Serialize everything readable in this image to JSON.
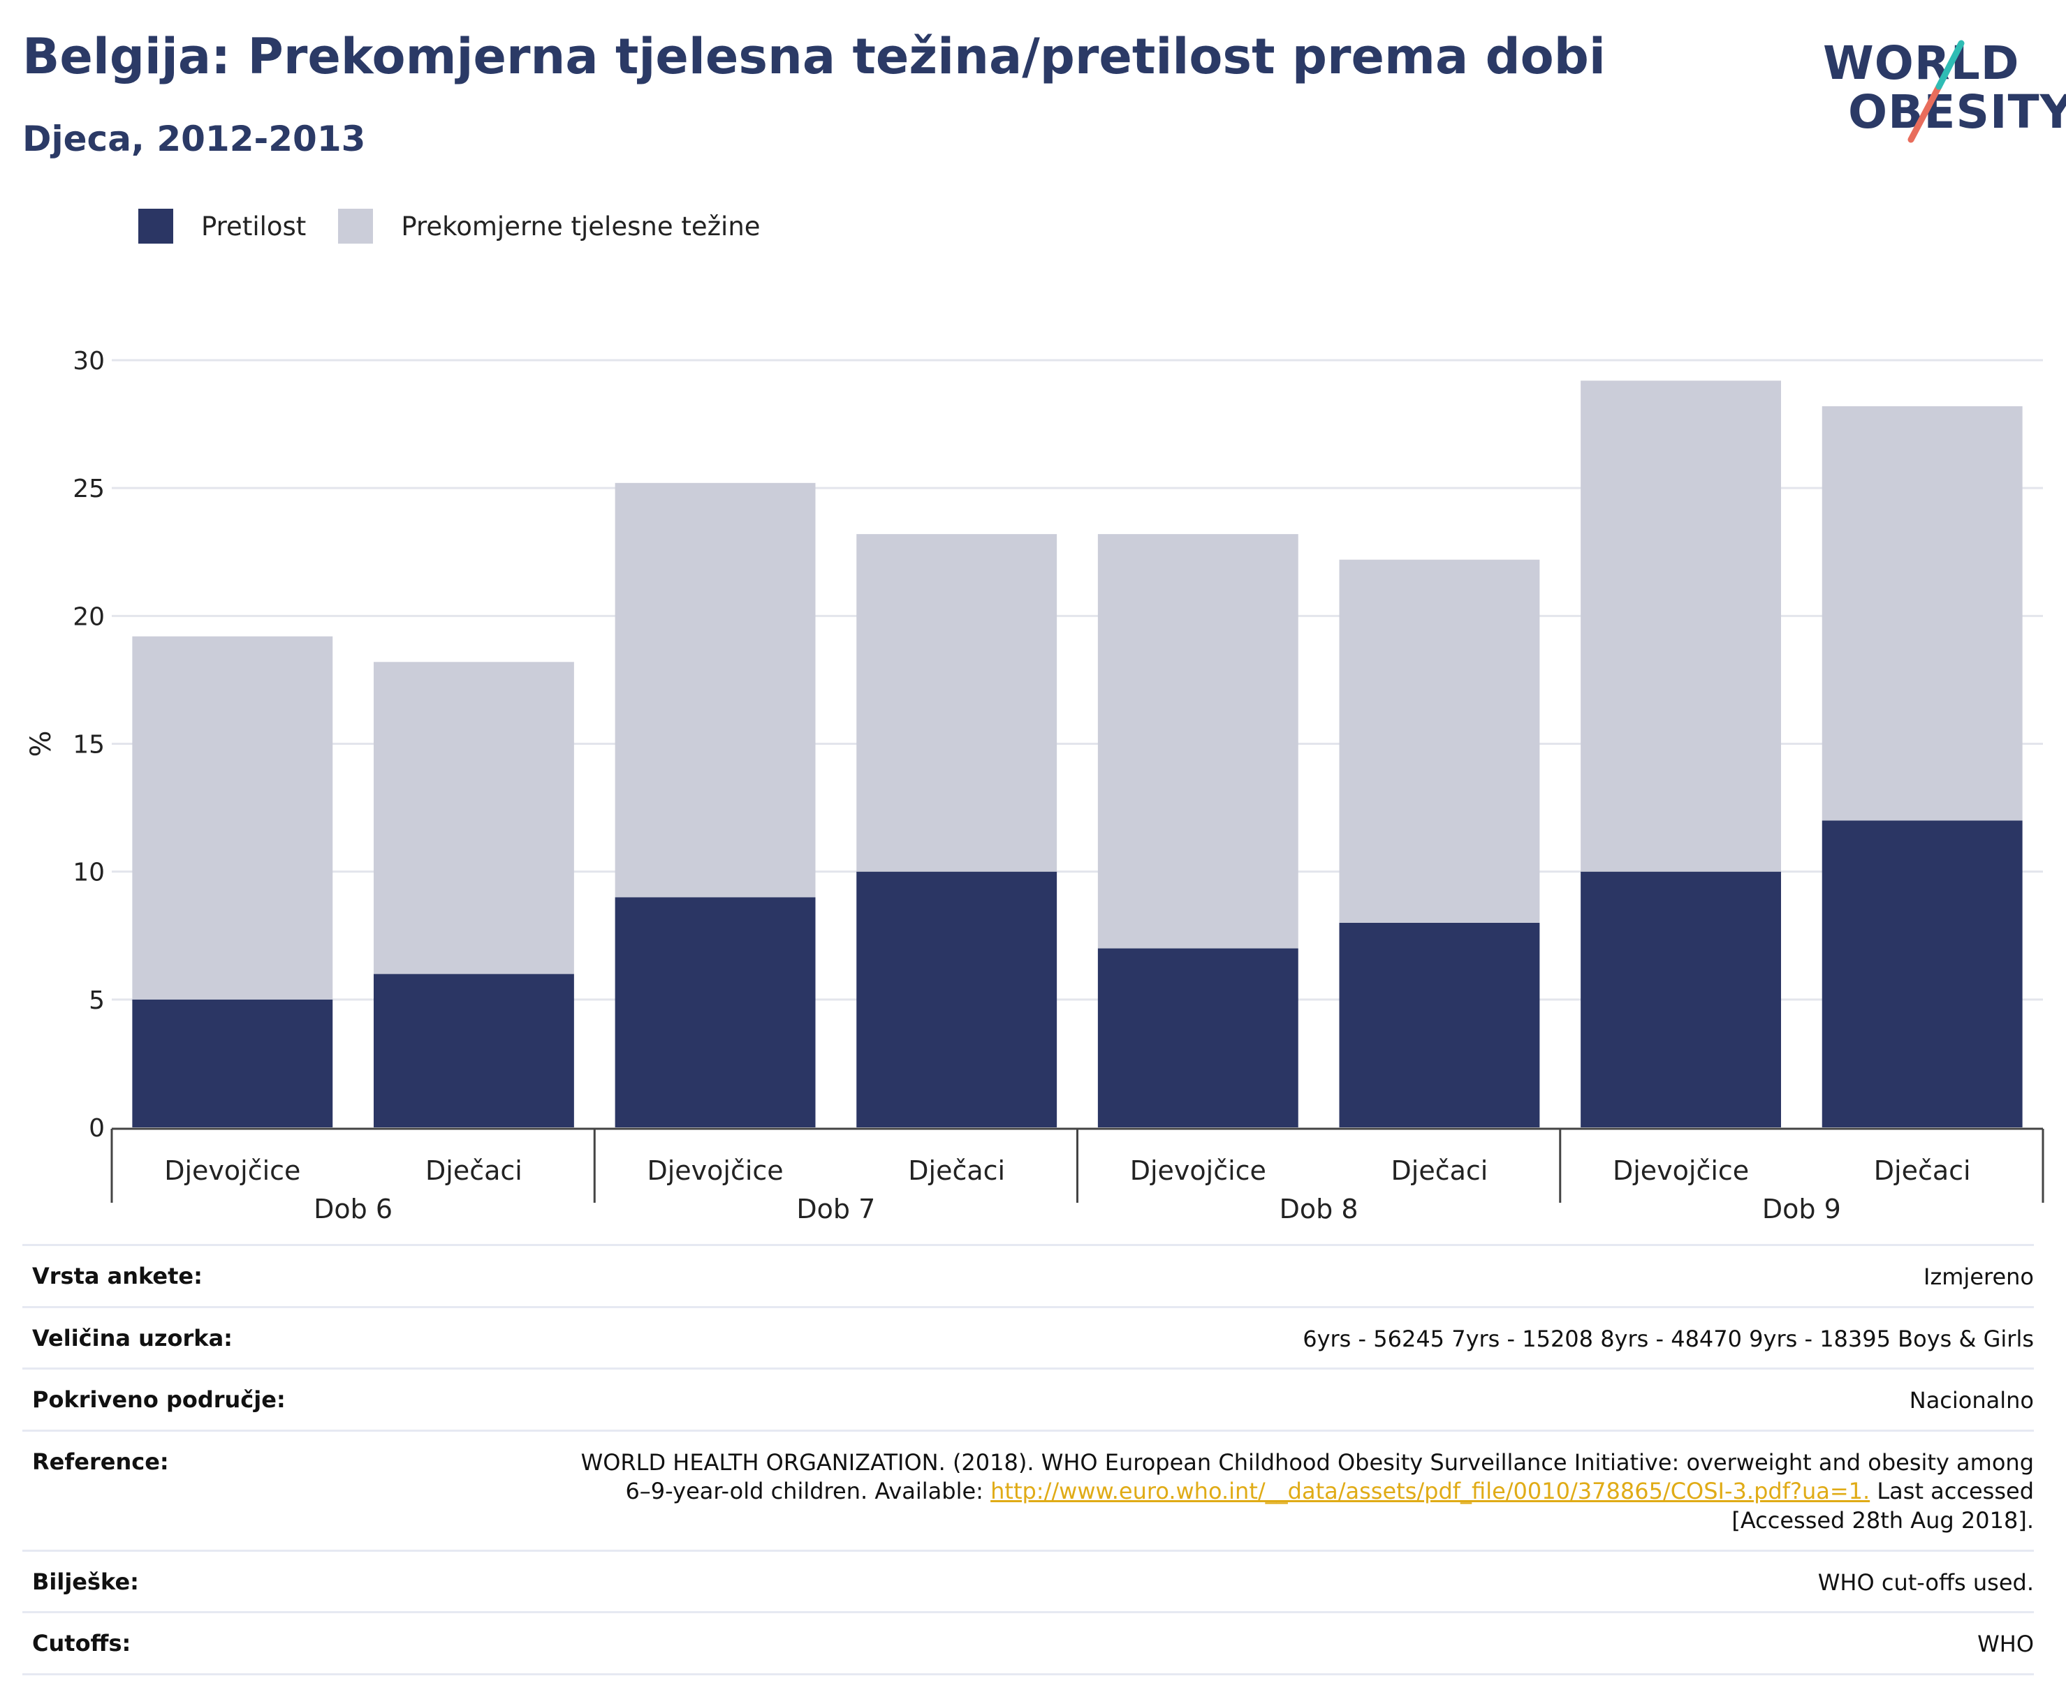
{
  "header": {
    "title": "Belgija: Prekomjerna tjelesna težina/pretilost prema dobi",
    "subtitle": "Djeca, 2012-2013"
  },
  "logo": {
    "line1": "WORLD",
    "line2": "OBESITY"
  },
  "legend": [
    {
      "label": "Pretilost",
      "color": "#2b3664"
    },
    {
      "label": "Prekomjerne tjelesne težine",
      "color": "#cbcdd9"
    }
  ],
  "chart_data": {
    "type": "bar",
    "stacked": true,
    "ylabel": "%",
    "ylim": [
      0,
      30
    ],
    "yticks": [
      0,
      5,
      10,
      15,
      20,
      25,
      30
    ],
    "grid": true,
    "legend_position": "top-left",
    "groups": [
      "Dob 6",
      "Dob 7",
      "Dob 8",
      "Dob 9"
    ],
    "categories": [
      "Djevojčice",
      "Dječaci",
      "Djevojčice",
      "Dječaci",
      "Djevojčice",
      "Dječaci",
      "Djevojčice",
      "Dječaci"
    ],
    "series": [
      {
        "name": "Pretilost",
        "color": "#2b3664",
        "values": [
          5,
          6,
          9,
          10,
          7,
          8,
          10,
          12
        ]
      },
      {
        "name": "Prekomjerne tjelesne težine",
        "color": "#cbcdd9",
        "values": [
          14.2,
          12.2,
          16.2,
          13.2,
          16.2,
          14.2,
          19.2,
          16.2
        ]
      }
    ]
  },
  "meta": {
    "rows": [
      {
        "label": "Vrsta ankete:",
        "value": "Izmjereno"
      },
      {
        "label": "Veličina uzorka:",
        "value": "6yrs - 56245 7yrs - 15208 8yrs - 48470 9yrs - 18395 Boys & Girls"
      },
      {
        "label": "Pokriveno područje:",
        "value": "Nacionalno"
      },
      {
        "label": "Reference:",
        "value_pre": "WORLD HEALTH ORGANIZATION. (2018). WHO European Childhood Obesity Surveillance Initiative: overweight and obesity among 6–9-year-old children. Available: ",
        "link": "http://www.euro.who.int/__data/assets/pdf_file/0010/378865/COSI-3.pdf?ua=1.",
        "value_post": " Last accessed [Accessed 28th Aug 2018]."
      },
      {
        "label": "Bilješke:",
        "value": "WHO cut-offs used."
      },
      {
        "label": "Cutoffs:",
        "value": "WHO"
      }
    ]
  }
}
